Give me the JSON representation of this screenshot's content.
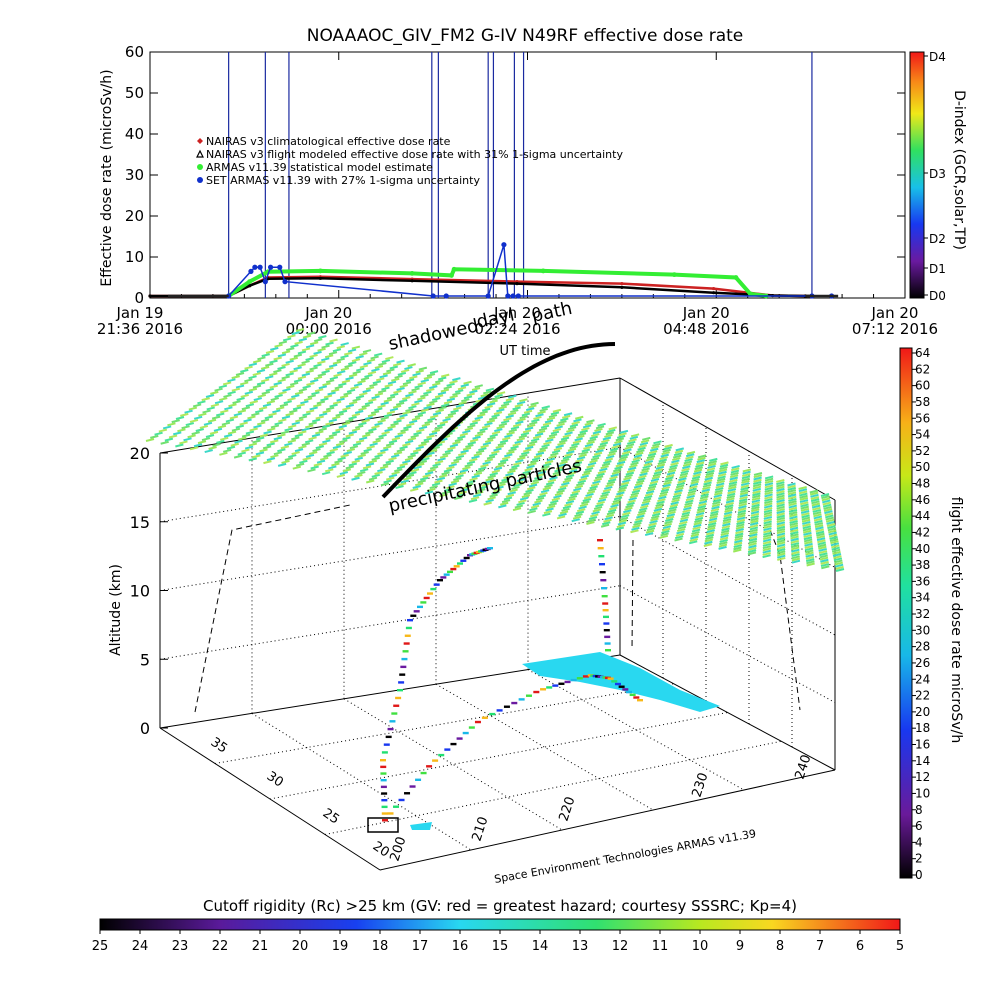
{
  "chart_data": [
    {
      "type": "line",
      "title": "NOAAAOC_GIV_FM2  G-IV    N49RF  effective dose rate",
      "xlabel": "UT time",
      "ylabel": "Effective dose rate  (microSv/h)",
      "ylim": [
        0,
        60
      ],
      "yticks": [
        "0",
        "10",
        "20",
        "30",
        "40",
        "50",
        "60"
      ],
      "xlim": [
        "2016-01-19T21:36",
        "2016-01-20T07:12"
      ],
      "xticks": [
        {
          "l1": "Jan 19",
          "l2": "21:36 2016",
          "t": 0
        },
        {
          "l1": "Jan 20",
          "l2": "00:00 2016",
          "t": 144
        },
        {
          "l1": "Jan 20",
          "l2": "02:24 2016",
          "t": 288
        },
        {
          "l1": "Jan 20",
          "l2": "04:48 2016",
          "t": 432
        },
        {
          "l1": "Jan 20",
          "l2": "07:12 2016",
          "t": 576
        }
      ],
      "legend_position": "top-left",
      "series": [
        {
          "name": "NAIRAS v3 climatological effective dose rate",
          "color": "#cc2222",
          "marker": "diamond",
          "x": [
            0,
            60,
            76,
            90,
            130,
            200,
            280,
            360,
            430,
            475,
            500,
            505
          ],
          "y": [
            0,
            0,
            3,
            5,
            5.2,
            4.6,
            4.0,
            3.5,
            2.3,
            0.6,
            0,
            0
          ]
        },
        {
          "name": "NAIRAS v3 flight modeled effective dose rate with 31% 1-sigma uncertainty",
          "color": "#000000",
          "marker": "triangle",
          "x": [
            0,
            60,
            76,
            90,
            130,
            200,
            280,
            360,
            430,
            475,
            500,
            505
          ],
          "y": [
            0,
            0,
            3,
            4.7,
            4.8,
            4.2,
            3.5,
            2.6,
            1.3,
            0.6,
            0,
            0
          ]
        },
        {
          "name": "ARMAS v11.39 statistical model estimate",
          "color": "#33ee33",
          "marker": "circle",
          "x": [
            60,
            76,
            90,
            130,
            200,
            230,
            232,
            300,
            400,
            447,
            458,
            470
          ],
          "y": [
            0,
            4,
            6.4,
            6.6,
            6.0,
            5.5,
            7.0,
            6.6,
            5.7,
            5.0,
            1.0,
            0.5
          ]
        },
        {
          "name": "SET ARMAS v11.39 with 27% 1-sigma uncertainty",
          "color": "#1030cc",
          "marker": "circle",
          "x": [
            60,
            77,
            80,
            84,
            88,
            92,
            99,
            103,
            216,
            226,
            258,
            270,
            273,
            277,
            281,
            505,
            520
          ],
          "y": [
            0,
            6.5,
            7.5,
            7.5,
            4,
            7.5,
            7.5,
            4,
            0,
            0,
            0,
            13,
            0,
            0,
            0,
            0,
            0
          ]
        }
      ],
      "spikes_x": [
        60,
        88,
        106,
        215,
        220,
        258,
        262,
        278,
        285,
        505
      ],
      "right_colorbar": {
        "label": "D-index (GCR,solar,TP)",
        "ticks": [
          "D0",
          "D1",
          "D2",
          "D3",
          "D4"
        ]
      }
    },
    {
      "type": "scatter",
      "zlabel": "Altitude (km)",
      "zlim": [
        0,
        20
      ],
      "zticks": [
        "0",
        "5",
        "10",
        "15",
        "20"
      ],
      "lat_ticks": [
        "20",
        "25",
        "30",
        "35"
      ],
      "lon_ticks": [
        "200",
        "210",
        "220",
        "230",
        "240"
      ],
      "annotations": [
        "shadowed",
        "dayl",
        "path",
        "precipitating particles"
      ],
      "credit": "Space Environment Technologies ARMAS v11.39",
      "right_colorbar": {
        "label": "flight effective dose rate microSv/h",
        "min": 0,
        "max": 64,
        "step": 2
      }
    },
    {
      "type": "heatmap",
      "title": "Cutoff rigidity (Rc) >25 km (GV: red = greatest hazard; courtesy SSSRC; Kp=4)",
      "ticks": [
        "25",
        "24",
        "23",
        "22",
        "21",
        "20",
        "19",
        "18",
        "17",
        "16",
        "15",
        "14",
        "13",
        "12",
        "11",
        "10",
        "9",
        "8",
        "7",
        "6",
        "5"
      ]
    }
  ]
}
